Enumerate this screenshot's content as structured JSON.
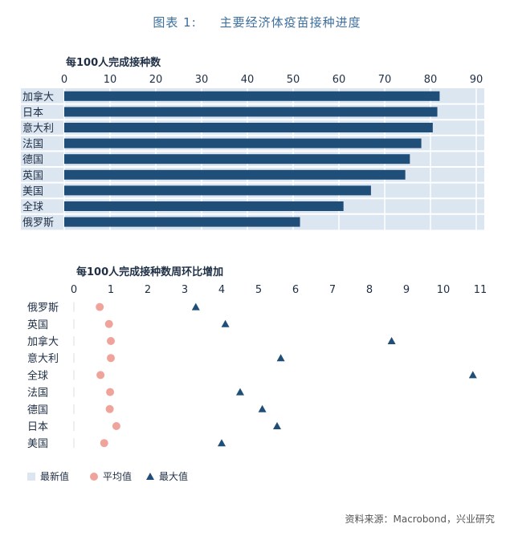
{
  "title": "图表 1:     主要经济体疫苗接种进度",
  "source": "资料来源：Macrobond，兴业研究",
  "chart_data": [
    {
      "type": "bar",
      "orientation": "horizontal",
      "title": "每100人完成接种数",
      "categories": [
        "加拿大",
        "日本",
        "意大利",
        "法国",
        "德国",
        "英国",
        "美国",
        "全球",
        "俄罗斯"
      ],
      "values": [
        82,
        81.5,
        80.5,
        78,
        75.5,
        74.5,
        67,
        61,
        51.5
      ],
      "xlim": [
        0,
        90
      ],
      "xticks": [
        0,
        10,
        20,
        30,
        40,
        50,
        60,
        70,
        80,
        90
      ],
      "background_series": "最新值",
      "colors": {
        "bar": "#1f4e79",
        "band": "#dce6f1",
        "grid": "#ffffff"
      }
    },
    {
      "type": "scatter",
      "title": "每100人完成接种数周环比增加",
      "categories": [
        "俄罗斯",
        "英国",
        "加拿大",
        "意大利",
        "全球",
        "法国",
        "德国",
        "日本",
        "美国"
      ],
      "series": [
        {
          "name": "平均值",
          "marker": "circle",
          "color": "#f0a39a",
          "values": [
            0.7,
            0.95,
            1.0,
            1.0,
            0.72,
            0.98,
            0.97,
            1.15,
            0.82
          ]
        },
        {
          "name": "最大值",
          "marker": "triangle",
          "color": "#1f4e79",
          "values": [
            3.3,
            4.1,
            8.6,
            5.6,
            10.8,
            4.5,
            5.1,
            5.5,
            4.0
          ]
        }
      ],
      "xlim": [
        0,
        11
      ],
      "xticks": [
        0,
        1,
        2,
        3,
        4,
        5,
        6,
        7,
        8,
        9,
        10,
        11
      ]
    }
  ],
  "legend": [
    {
      "label": "最新值",
      "marker": "square",
      "color": "#dce6f1"
    },
    {
      "label": "平均值",
      "marker": "circle",
      "color": "#f0a39a"
    },
    {
      "label": "最大值",
      "marker": "triangle",
      "color": "#1f4e79"
    }
  ]
}
